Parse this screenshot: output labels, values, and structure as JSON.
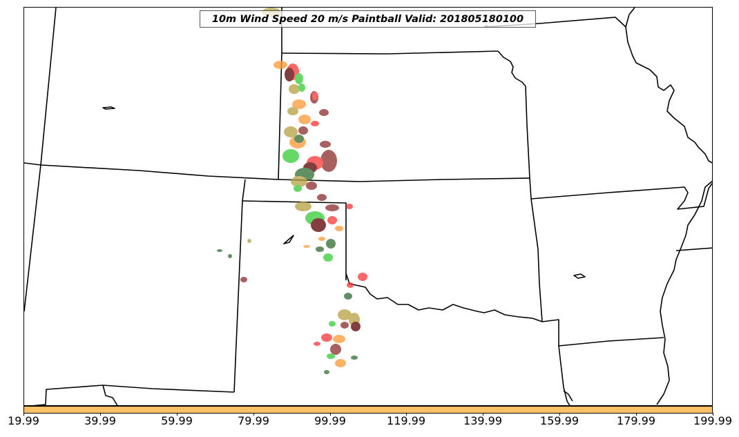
{
  "map": {
    "title": "10m Wind Speed 20 m/s Paintball Valid: 201805180100",
    "paintball_colors": [
      "#ff3333",
      "#8b2a2a",
      "#33cc33",
      "#ff9933",
      "#b5a040",
      "#2e6b2e",
      "#5a0000"
    ],
    "colorbar": {
      "color": "#ffc266",
      "tick_labels": [
        "19.99",
        "39.99",
        "59.99",
        "79.99",
        "99.99",
        "119.99",
        "139.99",
        "159.99",
        "179.99",
        "199.99"
      ]
    }
  }
}
